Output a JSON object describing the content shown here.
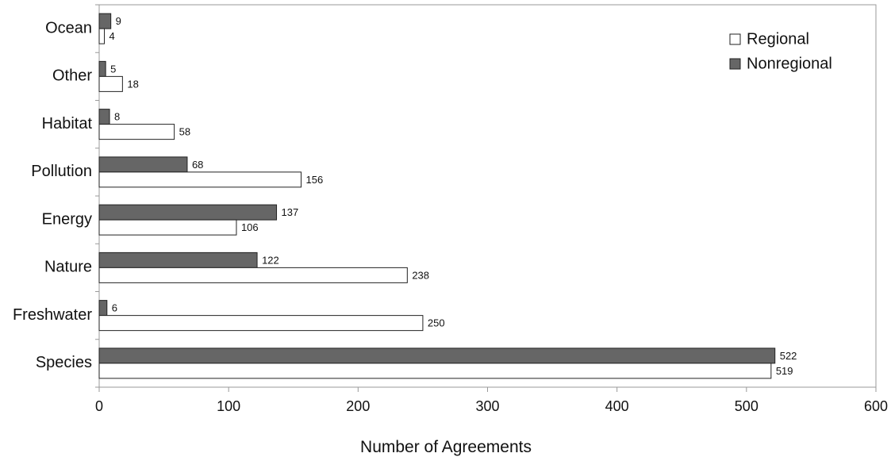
{
  "chart_data": {
    "type": "bar",
    "orientation": "horizontal",
    "categories": [
      "Ocean",
      "Other",
      "Habitat",
      "Pollution",
      "Energy",
      "Nature",
      "Freshwater",
      "Species"
    ],
    "series": [
      {
        "name": "Regional",
        "values": [
          4,
          18,
          58,
          156,
          106,
          238,
          250,
          519
        ],
        "color": "#ffffff"
      },
      {
        "name": "Nonregional",
        "values": [
          9,
          5,
          8,
          68,
          137,
          122,
          6,
          522
        ],
        "color": "#666666"
      }
    ],
    "xlabel": "Number of Agreements",
    "ylabel": "",
    "xlim": [
      0,
      600
    ],
    "xticks": [
      0,
      100,
      200,
      300,
      400,
      500,
      600
    ],
    "grid": false,
    "legend_position": "top-right",
    "data_labels": true
  }
}
